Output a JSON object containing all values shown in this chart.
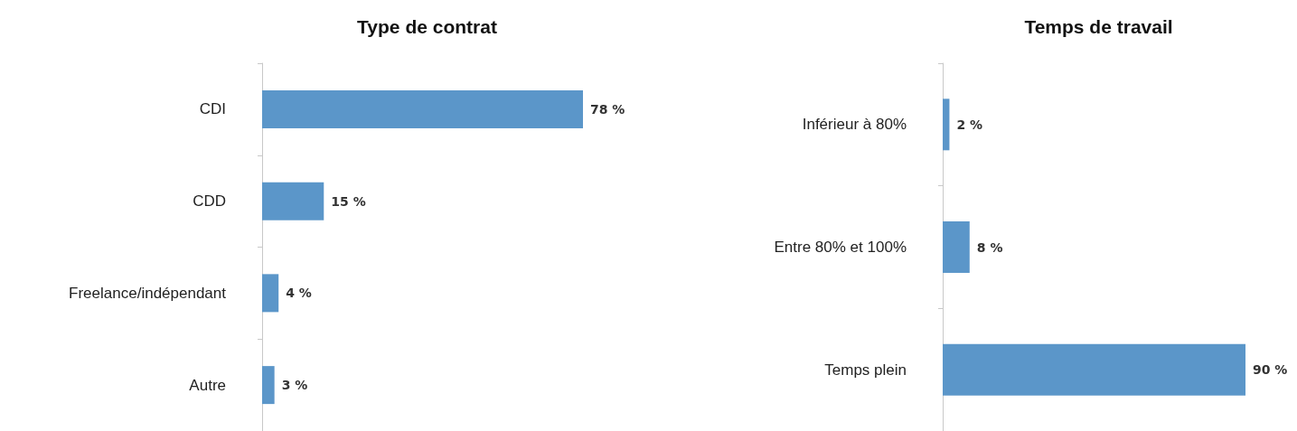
{
  "chart_data": [
    {
      "type": "bar",
      "title": "Type de contrat",
      "orientation": "horizontal",
      "categories": [
        "CDI",
        "CDD",
        "Freelance/indépendant",
        "Autre"
      ],
      "values": [
        78,
        15,
        4,
        3
      ],
      "value_labels": [
        "78 %",
        "15 %",
        "4 %",
        "3 %"
      ],
      "color": "#5b96c9"
    },
    {
      "type": "bar",
      "title": "Temps de travail",
      "orientation": "horizontal",
      "categories": [
        "Inférieur à 80%",
        "Entre 80% et 100%",
        "Temps plein"
      ],
      "values": [
        2,
        8,
        90
      ],
      "value_labels": [
        "2 %",
        "8 %",
        "90 %"
      ],
      "color": "#5b96c9"
    }
  ]
}
